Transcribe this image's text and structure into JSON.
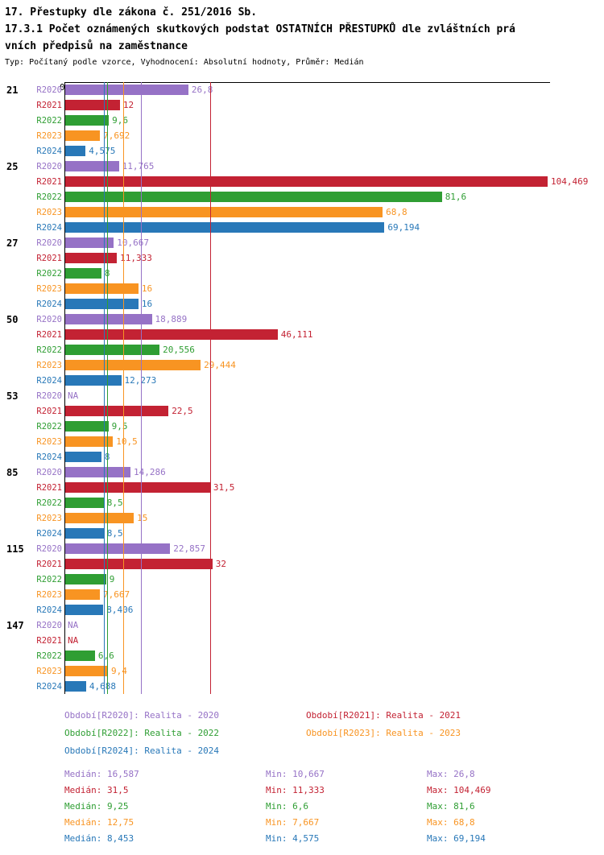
{
  "header": {
    "line1": "17. Přestupky dle zákona č. 251/2016 Sb.",
    "line2": "17.3.1 Počet oznámených skutkových podstat OSTATNÍCH PŘESTUPKŮ dle zvláštních prá",
    "line3": "vních předpisů na zaměstnance",
    "meta": "Typ: Počítaný podle vzorce, Vyhodnocení: Absolutní hodnoty, Průměr: Medián"
  },
  "chart_data": {
    "type": "bar",
    "orientation": "horizontal",
    "x_origin_label": "0",
    "xlim": [
      0,
      104.469
    ],
    "grid": false,
    "legend_position": "bottom",
    "series": [
      {
        "key": "R2020",
        "color": "#9672c6",
        "median": 16.587,
        "legend": "Období[R2020]: Realita - 2020",
        "stats": {
          "median": "Medián: 16,587",
          "min": "Min: 10,667",
          "max": "Max: 26,8"
        }
      },
      {
        "key": "R2021",
        "color": "#c32233",
        "median": 31.5,
        "legend": "Období[R2021]: Realita - 2021",
        "stats": {
          "median": "Medián: 31,5",
          "min": "Min: 11,333",
          "max": "Max: 104,469"
        }
      },
      {
        "key": "R2022",
        "color": "#2f9e33",
        "median": 9.25,
        "legend": "Období[R2022]: Realita - 2022",
        "stats": {
          "median": "Medián: 9,25",
          "min": "Min: 6,6",
          "max": "Max: 81,6"
        }
      },
      {
        "key": "R2023",
        "color": "#f89422",
        "median": 12.75,
        "legend": "Období[R2023]: Realita - 2023",
        "stats": {
          "median": "Medián: 12,75",
          "min": "Min: 7,667",
          "max": "Max: 68,8"
        }
      },
      {
        "key": "R2024",
        "color": "#2878b8",
        "median": 8.453,
        "legend": "Období[R2024]: Realita - 2024",
        "stats": {
          "median": "Medián: 8,453",
          "min": "Min: 4,575",
          "max": "Max: 69,194"
        }
      }
    ],
    "groups": [
      {
        "label": "21",
        "values": [
          26.8,
          12,
          9.6,
          7.692,
          4.575
        ],
        "display": [
          "26,8",
          "12",
          "9,6",
          "7,692",
          "4,575"
        ]
      },
      {
        "label": "25",
        "values": [
          11.765,
          104.469,
          81.6,
          68.8,
          69.194
        ],
        "display": [
          "11,765",
          "104,469",
          "81,6",
          "68,8",
          "69,194"
        ]
      },
      {
        "label": "27",
        "values": [
          10.667,
          11.333,
          8,
          16,
          16
        ],
        "display": [
          "10,667",
          "11,333",
          "8",
          "16",
          "16"
        ]
      },
      {
        "label": "50",
        "values": [
          18.889,
          46.111,
          20.556,
          29.444,
          12.273
        ],
        "display": [
          "18,889",
          "46,111",
          "20,556",
          "29,444",
          "12,273"
        ]
      },
      {
        "label": "53",
        "values": [
          null,
          22.5,
          9.5,
          10.5,
          8
        ],
        "display": [
          "NA",
          "22,5",
          "9,5",
          "10,5",
          "8"
        ]
      },
      {
        "label": "85",
        "values": [
          14.286,
          31.5,
          8.5,
          15,
          8.5
        ],
        "display": [
          "14,286",
          "31,5",
          "8,5",
          "15",
          "8,5"
        ]
      },
      {
        "label": "115",
        "values": [
          22.857,
          32,
          9,
          7.667,
          8.406
        ],
        "display": [
          "22,857",
          "32",
          "9",
          "7,667",
          "8,406"
        ]
      },
      {
        "label": "147",
        "values": [
          null,
          null,
          6.6,
          9.4,
          4.688
        ],
        "display": [
          "NA",
          "NA",
          "6,6",
          "9,4",
          "4,688"
        ]
      }
    ]
  }
}
